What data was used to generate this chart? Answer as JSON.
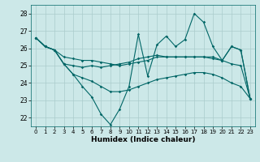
{
  "xlabel": "Humidex (Indice chaleur)",
  "ylabel": "",
  "xlim": [
    -0.5,
    23.5
  ],
  "ylim": [
    21.5,
    28.5
  ],
  "yticks": [
    22,
    23,
    24,
    25,
    26,
    27,
    28
  ],
  "xticks": [
    0,
    1,
    2,
    3,
    4,
    5,
    6,
    7,
    8,
    9,
    10,
    11,
    12,
    13,
    14,
    15,
    16,
    17,
    18,
    19,
    20,
    21,
    22,
    23
  ],
  "bg_color": "#cce8e8",
  "grid_color": "#aacccc",
  "line_color": "#006666",
  "series": [
    [
      26.6,
      26.1,
      25.9,
      25.1,
      24.5,
      23.8,
      23.2,
      22.2,
      21.6,
      22.5,
      23.8,
      26.8,
      24.4,
      26.2,
      26.7,
      26.1,
      26.5,
      28.0,
      27.5,
      26.1,
      25.3,
      26.1,
      25.9,
      23.1
    ],
    [
      26.6,
      26.1,
      25.9,
      25.1,
      25.0,
      24.9,
      25.0,
      24.9,
      25.0,
      25.1,
      25.2,
      25.4,
      25.5,
      25.6,
      25.5,
      25.5,
      25.5,
      25.5,
      25.5,
      25.4,
      25.3,
      25.1,
      25.0,
      23.1
    ],
    [
      26.6,
      26.1,
      25.9,
      25.5,
      25.4,
      25.3,
      25.3,
      25.2,
      25.1,
      25.0,
      25.1,
      25.2,
      25.3,
      25.5,
      25.5,
      25.5,
      25.5,
      25.5,
      25.5,
      25.5,
      25.3,
      26.1,
      25.9,
      23.1
    ],
    [
      26.6,
      26.1,
      25.9,
      25.1,
      24.5,
      24.3,
      24.1,
      23.8,
      23.5,
      23.5,
      23.6,
      23.8,
      24.0,
      24.2,
      24.3,
      24.4,
      24.5,
      24.6,
      24.6,
      24.5,
      24.3,
      24.0,
      23.8,
      23.1
    ]
  ]
}
